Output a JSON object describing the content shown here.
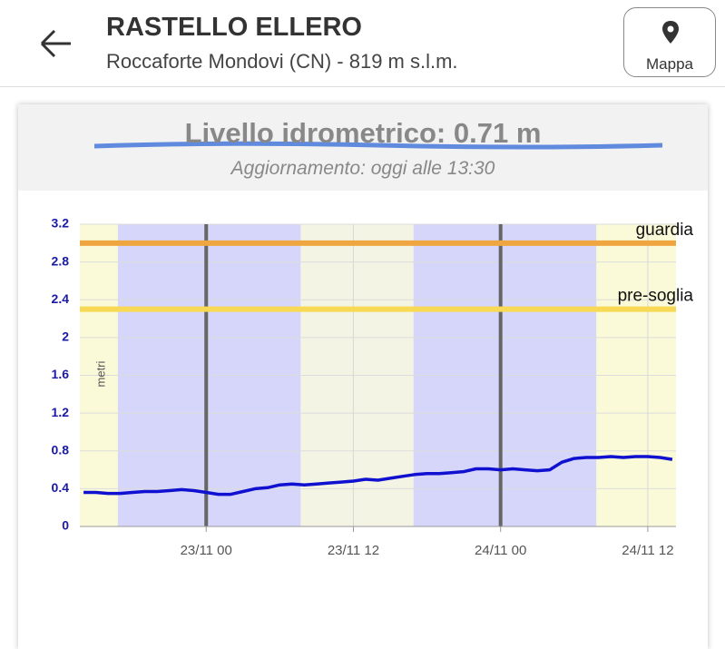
{
  "header": {
    "title": "RASTELLO ELLERO",
    "subtitle": "Roccaforte Mondovi (CN) - 819 m s.l.m.",
    "map_button": "Mappa"
  },
  "card": {
    "title": "Livello idrometrico: 0.71 m",
    "subtitle": "Aggiornamento: oggi alle 13:30"
  },
  "chart_data": {
    "type": "line",
    "y_label": "metri",
    "xlim": [
      -10.3,
      38.3
    ],
    "xticks": [
      {
        "value": 0,
        "label": "23/11 00"
      },
      {
        "value": 12,
        "label": "23/11 12"
      },
      {
        "value": 24,
        "label": "24/11 00"
      },
      {
        "value": 36,
        "label": "24/11 12"
      }
    ],
    "ylim": [
      0,
      3.2
    ],
    "yticks": [
      0,
      0.4,
      0.8,
      1.2,
      1.6,
      2,
      2.4,
      2.8,
      3.2
    ],
    "night_periods": [
      [
        -7.2,
        7.7
      ],
      [
        16.9,
        31.8
      ]
    ],
    "thresholds": [
      {
        "name": "guardia",
        "value": 3.0,
        "color": "#f0a640"
      },
      {
        "name": "pre-soglia",
        "value": 2.3,
        "color": "#f7d955"
      }
    ],
    "x": [
      -10,
      -9,
      -8,
      -7,
      -6,
      -5,
      -4,
      -3,
      -2,
      -1,
      0,
      1,
      2,
      3,
      4,
      5,
      6,
      7,
      8,
      9,
      10,
      11,
      12,
      13,
      14,
      15,
      16,
      17,
      18,
      19,
      20,
      21,
      22,
      23,
      24,
      25,
      26,
      27,
      28,
      29,
      30,
      31,
      32,
      33,
      34,
      35,
      36,
      37,
      38
    ],
    "series": [
      {
        "color": "#1010d0",
        "values": [
          0.36,
          0.36,
          0.35,
          0.35,
          0.36,
          0.37,
          0.37,
          0.38,
          0.39,
          0.38,
          0.36,
          0.34,
          0.34,
          0.37,
          0.4,
          0.41,
          0.44,
          0.45,
          0.44,
          0.45,
          0.46,
          0.47,
          0.48,
          0.5,
          0.49,
          0.51,
          0.53,
          0.55,
          0.56,
          0.56,
          0.57,
          0.58,
          0.61,
          0.61,
          0.6,
          0.61,
          0.6,
          0.59,
          0.6,
          0.68,
          0.72,
          0.73,
          0.73,
          0.74,
          0.73,
          0.74,
          0.74,
          0.73,
          0.71
        ]
      }
    ]
  }
}
